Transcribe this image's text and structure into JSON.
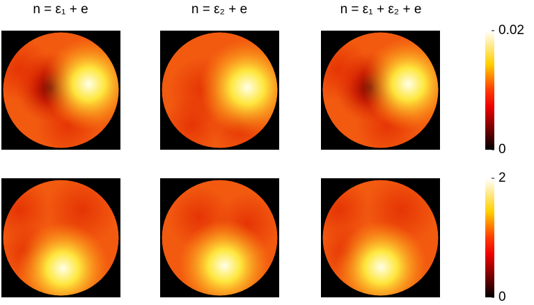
{
  "titles": [
    "n = ε₁ + e",
    "n = ε₂ + e",
    "n = ε₁ + ε₂ + e"
  ],
  "colorbars": [
    {
      "lim": [
        0,
        0.02
      ],
      "ticks": [
        0,
        0.02
      ]
    },
    {
      "lim": [
        0,
        2
      ],
      "ticks": [
        0,
        2
      ]
    }
  ]
}
